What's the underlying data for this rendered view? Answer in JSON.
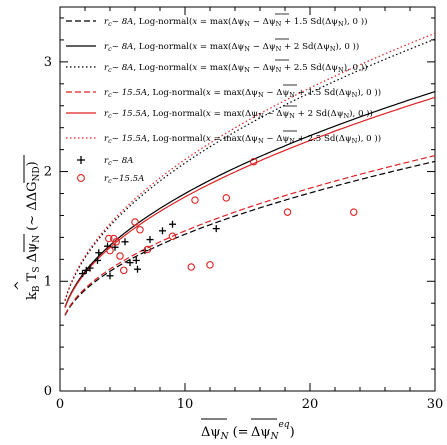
{
  "chart_data": {
    "type": "line",
    "xlabel": "Δψ̄_N (= Δψ̄_N^eq)",
    "ylabel": "k_B T̂_S Δψ̄_N (~ ΔΔG_ND)",
    "xlim": [
      0,
      30
    ],
    "ylim": [
      0,
      3.5
    ],
    "xticks": [
      0,
      10,
      20,
      30
    ],
    "yticks": [
      0,
      1,
      2,
      3
    ],
    "grid": false,
    "legend_position": "top-left",
    "series": [
      {
        "name": "r_c ~ 8A, Log-normal(x = max(Δψ_N − Δψ̄_N + 1.5 Sd(Δψ_N), 0 ))",
        "kind": "line",
        "color": "#000000",
        "dash": "6,3",
        "A": 0.5,
        "B": 0.3,
        "x": [
          0.4,
          1,
          2,
          3,
          4,
          6,
          8,
          10,
          15,
          20,
          25,
          30
        ],
        "y": [
          0.52,
          0.66,
          0.79,
          0.89,
          0.97,
          1.08,
          1.16,
          1.23,
          1.35,
          1.44,
          1.51,
          1.56
        ]
      },
      {
        "name": "r_c ~ 8A, Log-normal(x = max(Δψ_N − Δψ̄_N + 2 Sd(Δψ_N), 0 ))",
        "kind": "line",
        "color": "#000000",
        "dash": "",
        "A": 0.5,
        "B": 0.42,
        "x": [
          0.4,
          1,
          2,
          3,
          4,
          6,
          8,
          10,
          15,
          20,
          25,
          30
        ],
        "y": [
          0.58,
          0.75,
          0.92,
          1.04,
          1.13,
          1.28,
          1.39,
          1.47,
          1.64,
          1.76,
          1.85,
          1.93
        ]
      },
      {
        "name": "r_c ~ 8A, Log-normal(x = max(Δψ_N − Δψ̄_N + 2.5 Sd(Δψ_N), 0 ))",
        "kind": "line",
        "color": "#000000",
        "dash": "1.5,2.5",
        "A": 0.5,
        "B": 0.51,
        "x": [
          0.4,
          1,
          2,
          3,
          4,
          6,
          8,
          10,
          15,
          20,
          25,
          30
        ],
        "y": [
          0.62,
          0.82,
          1.02,
          1.17,
          1.28,
          1.46,
          1.59,
          1.69,
          1.9,
          2.04,
          2.15,
          2.24
        ]
      },
      {
        "name": "r_c ~ 15.5A, Log-normal(x = max(Δψ_N − Δψ̄_N + 1.5 Sd(Δψ_N), 0 ))",
        "kind": "line",
        "color": "#dd2222",
        "dash": "6,3",
        "A": 0.5,
        "B": 0.31,
        "x": [
          0.4,
          1,
          2,
          3,
          4,
          6,
          8,
          10,
          15,
          20,
          25,
          30
        ],
        "y": [
          0.53,
          0.67,
          0.81,
          0.91,
          0.99,
          1.11,
          1.19,
          1.26,
          1.38,
          1.47,
          1.54,
          1.59
        ]
      },
      {
        "name": "r_c ~ 15.5A, Log-normal(x = max(Δψ_N − Δψ̄_N + 2 Sd(Δψ_N), 0 ))",
        "kind": "line",
        "color": "#dd2222",
        "dash": "",
        "A": 0.5,
        "B": 0.41,
        "x": [
          0.4,
          1,
          2,
          3,
          4,
          6,
          8,
          10,
          15,
          20,
          25,
          30
        ],
        "y": [
          0.57,
          0.74,
          0.91,
          1.02,
          1.11,
          1.26,
          1.36,
          1.45,
          1.61,
          1.73,
          1.82,
          1.9
        ]
      },
      {
        "name": "r_c ~ 15.5A, Log-normal(x = max(Δψ_N − Δψ̄_N + 2.5 Sd(Δψ_N), 0 ))",
        "kind": "line",
        "color": "#dd2222",
        "dash": "1.5,2.5",
        "A": 0.5,
        "B": 0.52,
        "x": [
          0.4,
          1,
          2,
          3,
          4,
          6,
          8,
          10,
          15,
          20,
          25,
          30
        ],
        "y": [
          0.63,
          0.83,
          1.04,
          1.19,
          1.31,
          1.49,
          1.62,
          1.73,
          1.94,
          2.09,
          2.2,
          2.29
        ]
      },
      {
        "name": "r_c ~ 8A",
        "kind": "plus",
        "color": "#000000",
        "x": [
          1.8,
          2.1,
          2.4,
          3.0,
          3.1,
          3.8,
          4.0,
          4.4,
          5.2,
          5.6,
          6.1,
          6.2,
          6.8,
          7.2,
          8.2,
          9.0,
          12.5
        ],
        "y": [
          1.07,
          1.1,
          1.12,
          1.19,
          1.26,
          1.32,
          1.05,
          1.31,
          1.36,
          1.17,
          1.19,
          1.11,
          1.28,
          1.38,
          1.46,
          1.52,
          1.48
        ]
      },
      {
        "name": "r_c ~ 15.5A",
        "kind": "circle",
        "color": "#dd2222",
        "x": [
          3.9,
          4.0,
          4.3,
          4.5,
          4.8,
          5.1,
          6.0,
          6.4,
          7.0,
          9.0,
          10.5,
          10.8,
          12.0,
          13.3,
          15.5,
          18.2,
          23.5
        ],
        "y": [
          1.39,
          1.28,
          1.39,
          1.36,
          1.23,
          1.1,
          1.54,
          1.47,
          1.29,
          1.41,
          1.13,
          1.74,
          1.15,
          1.76,
          2.09,
          1.63,
          1.63
        ]
      }
    ]
  }
}
